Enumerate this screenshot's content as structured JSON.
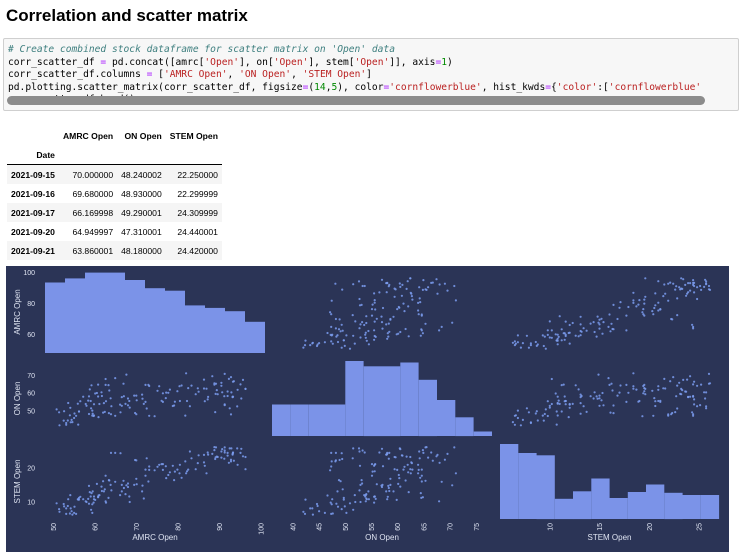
{
  "page": {
    "title": "Correlation and scatter matrix"
  },
  "code": {
    "lines": [
      [
        {
          "t": "# Create combined stock dataframe for scatter matrix on 'Open' data",
          "k": "c-comment"
        }
      ],
      [
        {
          "t": "corr_scatter_df "
        },
        {
          "t": "=",
          "k": "c-op"
        },
        {
          "t": " pd.concat([amrc["
        },
        {
          "t": "'Open'",
          "k": "c-str"
        },
        {
          "t": "], on["
        },
        {
          "t": "'Open'",
          "k": "c-str"
        },
        {
          "t": "], stem["
        },
        {
          "t": "'Open'",
          "k": "c-str"
        },
        {
          "t": "]], axis"
        },
        {
          "t": "=",
          "k": "c-op"
        },
        {
          "t": "1",
          "k": "c-num"
        },
        {
          "t": ")"
        }
      ],
      [
        {
          "t": "corr_scatter_df.columns "
        },
        {
          "t": "=",
          "k": "c-op"
        },
        {
          "t": " ["
        },
        {
          "t": "'AMRC Open'",
          "k": "c-str"
        },
        {
          "t": ", "
        },
        {
          "t": "'ON Open'",
          "k": "c-str"
        },
        {
          "t": ", "
        },
        {
          "t": "'STEM Open'",
          "k": "c-str"
        },
        {
          "t": "]"
        }
      ],
      [
        {
          "t": "pd.plotting.scatter_matrix(corr_scatter_df, figsize"
        },
        {
          "t": "=",
          "k": "c-op"
        },
        {
          "t": "("
        },
        {
          "t": "14",
          "k": "c-num"
        },
        {
          "t": ","
        },
        {
          "t": "5",
          "k": "c-num"
        },
        {
          "t": "), color"
        },
        {
          "t": "=",
          "k": "c-op"
        },
        {
          "t": "'cornflowerblue'",
          "k": "c-str"
        },
        {
          "t": ", hist_kwds"
        },
        {
          "t": "=",
          "k": "c-op"
        },
        {
          "t": "{"
        },
        {
          "t": "'color'",
          "k": "c-str"
        },
        {
          "t": ":["
        },
        {
          "t": "'cornflowerblue'",
          "k": "c-str"
        }
      ],
      [
        {
          "t": "corr_scatter_df.head()"
        }
      ]
    ]
  },
  "table": {
    "columns": [
      "AMRC Open",
      "ON Open",
      "STEM Open"
    ],
    "index_name": "Date",
    "rows": [
      {
        "date": "2021-09-15",
        "values": [
          "70.000000",
          "48.240002",
          "22.250000"
        ]
      },
      {
        "date": "2021-09-16",
        "values": [
          "69.680000",
          "48.930000",
          "22.299999"
        ]
      },
      {
        "date": "2021-09-17",
        "values": [
          "66.169998",
          "49.290001",
          "24.309999"
        ]
      },
      {
        "date": "2021-09-20",
        "values": [
          "64.949997",
          "47.310001",
          "24.440001"
        ]
      },
      {
        "date": "2021-09-21",
        "values": [
          "63.860001",
          "48.180000",
          "24.420000"
        ]
      }
    ]
  },
  "chart_data": {
    "type": "scatter",
    "variables": [
      "AMRC Open",
      "ON Open",
      "STEM Open"
    ],
    "ranges": {
      "AMRC Open": [
        48,
        101
      ],
      "ON Open": [
        36,
        78
      ],
      "STEM Open": [
        5,
        27
      ]
    },
    "ticks": {
      "AMRC Open": [
        50,
        60,
        70,
        80,
        90,
        100
      ],
      "ON Open": [
        40,
        45,
        50,
        55,
        60,
        65,
        70,
        75
      ],
      "STEM Open": [
        10,
        15,
        20,
        25
      ]
    },
    "ytick_labels": {
      "AMRC Open": [
        60,
        80,
        100
      ],
      "ON Open": [
        50,
        60,
        70
      ],
      "STEM Open": [
        10,
        20
      ]
    },
    "colors": {
      "background": "#2b3456",
      "points": "#7b9cee",
      "hist": "#7b93e8",
      "text": "#dfe4f2"
    },
    "histograms": {
      "AMRC Open": [
        0.86,
        0.91,
        0.98,
        0.98,
        0.89,
        0.79,
        0.76,
        0.58,
        0.55,
        0.51,
        0.38
      ],
      "ON Open": [
        0.42,
        0.42,
        0.42,
        0.42,
        1.0,
        0.93,
        0.93,
        0.98,
        0.75,
        0.48,
        0.25,
        0.06
      ],
      "STEM Open": [
        1.0,
        0.88,
        0.85,
        0.27,
        0.37,
        0.54,
        0.28,
        0.36,
        0.46,
        0.35,
        0.32,
        0.32
      ]
    },
    "points": [
      [
        96.3,
        62.4,
        23.2
      ],
      [
        93.2,
        57.8,
        23.9
      ],
      [
        62.6,
        64.6,
        17.7
      ],
      [
        79.1,
        53.1,
        16.4
      ],
      [
        59.4,
        47.4,
        9.3
      ],
      [
        64.9,
        68.4,
        15.9
      ],
      [
        62.0,
        49.1,
        16.1
      ],
      [
        76.1,
        55.7,
        21.1
      ],
      [
        56.5,
        55.5,
        11.5
      ],
      [
        59.2,
        64.4,
        12.6
      ],
      [
        63.5,
        61.5,
        16.3
      ],
      [
        62.2,
        54.4,
        13.1
      ],
      [
        56.2,
        49.7,
        10.7
      ],
      [
        50.8,
        50.9,
        9.6
      ],
      [
        53.1,
        42.3,
        6.5
      ],
      [
        91.3,
        70.8,
        26.0
      ],
      [
        68.4,
        51.9,
        10.0
      ],
      [
        92.0,
        60.9,
        23.6
      ],
      [
        79.3,
        55.2,
        18.9
      ],
      [
        68.3,
        55.6,
        11.6
      ],
      [
        94.4,
        61.9,
        20.9
      ],
      [
        92.5,
        51.5,
        25.7
      ],
      [
        59.5,
        48.5,
        13.1
      ],
      [
        82.9,
        52.7,
        24.8
      ],
      [
        58.0,
        52.9,
        10.0
      ],
      [
        93.3,
        58.0,
        24.4
      ],
      [
        59.0,
        55.6,
        11.6
      ],
      [
        92.9,
        60.4,
        25.7
      ],
      [
        91.2,
        58.3,
        22.7
      ],
      [
        77.2,
        60.3,
        17.0
      ],
      [
        93.5,
        66.7,
        22.1
      ],
      [
        58.6,
        48.3,
        9.5
      ],
      [
        63.3,
        64.5,
        11.2
      ],
      [
        88.8,
        65.5,
        26.1
      ],
      [
        55.0,
        46.1,
        6.8
      ],
      [
        77.1,
        57.2,
        20.5
      ],
      [
        80.9,
        64.3,
        17.1
      ],
      [
        58.8,
        62.1,
        12.9
      ],
      [
        67.4,
        54.0,
        12.3
      ],
      [
        54.1,
        51.8,
        12.0
      ],
      [
        73.1,
        47.3,
        20.4
      ],
      [
        93.3,
        66.4,
        24.5
      ],
      [
        86.3,
        67.6,
        23.8
      ],
      [
        54.0,
        47.6,
        6.6
      ],
      [
        66.1,
        53.6,
        12.0
      ],
      [
        90.5,
        64.1,
        24.8
      ],
      [
        59.8,
        47.5,
        10.8
      ],
      [
        67.6,
        70.4,
        14.9
      ],
      [
        61.7,
        58.4,
        13.2
      ],
      [
        94.3,
        52.6,
        25.7
      ],
      [
        96.3,
        62.4,
        19.6
      ],
      [
        92.8,
        48.1,
        21.9
      ],
      [
        72.5,
        51.4,
        22.8
      ],
      [
        62.6,
        67.9,
        10.2
      ],
      [
        75.5,
        63.9,
        20.9
      ],
      [
        92.3,
        68.0,
        21.5
      ],
      [
        86.3,
        62.6,
        21.6
      ],
      [
        56.0,
        42.4,
        10.7
      ],
      [
        71.4,
        59.2,
        13.1
      ],
      [
        61.1,
        53.9,
        12.0
      ],
      [
        60.1,
        59.8,
        10.6
      ],
      [
        59.7,
        47.2,
        9.8
      ],
      [
        60.5,
        60.1,
        15.3
      ],
      [
        54.2,
        43.7,
        8.1
      ],
      [
        55.1,
        48.6,
        8.6
      ],
      [
        89.1,
        59.6,
        23.1
      ],
      [
        88.8,
        64.8,
        25.2
      ],
      [
        68.0,
        53.2,
        15.4
      ],
      [
        53.5,
        44.7,
        8.8
      ],
      [
        55.9,
        54.1,
        10.8
      ],
      [
        63.4,
        48.8,
        16.4
      ],
      [
        90.7,
        60.5,
        25.5
      ],
      [
        73.1,
        64.0,
        19.4
      ],
      [
        68.0,
        57.0,
        14.4
      ],
      [
        80.4,
        63.9,
        18.4
      ],
      [
        59.4,
        50.2,
        6.8
      ],
      [
        51.4,
        49.3,
        7.9
      ],
      [
        59.1,
        51.5,
        7.7
      ],
      [
        81.8,
        47.4,
        21.9
      ],
      [
        77.7,
        60.2,
        17.9
      ],
      [
        95.7,
        67.4,
        23.4
      ],
      [
        53.1,
        43.3,
        8.1
      ],
      [
        70.1,
        56.0,
        15.2
      ],
      [
        82.2,
        55.6,
        19.0
      ],
      [
        82.5,
        62.8,
        19.5
      ],
      [
        78.1,
        62.0,
        18.7
      ],
      [
        64.0,
        52.7,
        13.4
      ],
      [
        57.2,
        58.0,
        10.8
      ],
      [
        70.0,
        58.6,
        16.8
      ],
      [
        55.5,
        47.3,
        6.5
      ],
      [
        84.3,
        59.4,
        19.6
      ],
      [
        84.8,
        62.7,
        21.4
      ],
      [
        82.0,
        71.1,
        18.4
      ],
      [
        80.5,
        55.6,
        20.9
      ],
      [
        70.0,
        48.2,
        22.2
      ],
      [
        69.7,
        48.9,
        22.3
      ],
      [
        66.2,
        49.3,
        24.3
      ],
      [
        64.9,
        47.3,
        24.4
      ],
      [
        63.9,
        48.2,
        24.4
      ],
      [
        60.8,
        58.1,
        11.5
      ],
      [
        78.8,
        52.8,
        20.6
      ],
      [
        62.4,
        49.5,
        13.7
      ],
      [
        67.0,
        58.3,
        14.1
      ],
      [
        60.8,
        64.8,
        11.4
      ],
      [
        57.8,
        53.9,
        10.2
      ],
      [
        69.5,
        58.6,
        15.0
      ],
      [
        86.9,
        62.5,
        18.4
      ],
      [
        89.0,
        49.4,
        22.6
      ],
      [
        91.3,
        53.3,
        25.1
      ],
      [
        89.4,
        61.7,
        23.3
      ],
      [
        79.9,
        61.1,
        19.5
      ],
      [
        59.8,
        53.8,
        11.6
      ],
      [
        75.1,
        61.3,
        20.3
      ],
      [
        53.6,
        54.5,
        10.8
      ],
      [
        52.5,
        44.6,
        9.4
      ],
      [
        54.4,
        45.0,
        7.3
      ],
      [
        71.8,
        54.0,
        11.0
      ],
      [
        76.4,
        59.9,
        19.4
      ],
      [
        60.9,
        46.6,
        11.9
      ],
      [
        72.9,
        64.6,
        16.0
      ],
      [
        91.3,
        53.7,
        24.5
      ],
      [
        51.5,
        42.0,
        7.1
      ],
      [
        89.2,
        65.3,
        26.0
      ],
      [
        62.7,
        55.5,
        9.8
      ],
      [
        66.5,
        57.8,
        13.1
      ],
      [
        61.6,
        60.5,
        14.5
      ],
      [
        88.3,
        69.5,
        24.1
      ],
      [
        85.0,
        60.8,
        23.7
      ],
      [
        83.3,
        64.2,
        22.8
      ],
      [
        95.1,
        64.9,
        24.4
      ],
      [
        52.6,
        49.9,
        8.7
      ],
      [
        71.5,
        56.9,
        14.8
      ],
      [
        87.2,
        56.5,
        24.5
      ],
      [
        58.6,
        58.2,
        14.7
      ],
      [
        74.4,
        47.1,
        19.3
      ],
      [
        95.3,
        57.0,
        25.6
      ],
      [
        72.2,
        55.1,
        17.7
      ],
      [
        72.2,
        64.6,
        19.5
      ],
      [
        86.5,
        55.5,
        20.6
      ],
      [
        87.3,
        57.9,
        23.9
      ],
      [
        54.6,
        43.8,
        6.3
      ],
      [
        56.2,
        49.7,
        11.2
      ],
      [
        89.6,
        59.4,
        23.2
      ],
      [
        76.4,
        55.1,
        21.1
      ],
      [
        92.0,
        58.4,
        24.4
      ],
      [
        90.5,
        65.8,
        23.0
      ],
      [
        93.2,
        58.0,
        24.1
      ],
      [
        66.5,
        52.9,
        15.0
      ],
      [
        58.4,
        55.8,
        10.9
      ],
      [
        66.9,
        65.3,
        16.2
      ],
      [
        92.8,
        69.0,
        22.4
      ],
      [
        63.8,
        57.1,
        15.0
      ]
    ]
  }
}
